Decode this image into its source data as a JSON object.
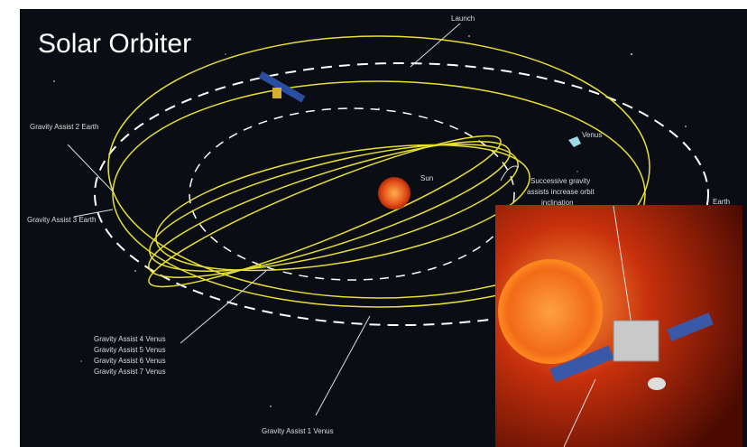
{
  "title": "Solar Orbiter",
  "labels": {
    "launch": "Launch",
    "venus": "Venus",
    "sun": "Sun",
    "earth": "Earth",
    "ga2": "Gravity Assist 2 Earth",
    "ga3": "Gravity Assist 3 Earth",
    "ga1": "Gravity Assist 1 Venus",
    "ga_venus_group": [
      "Gravity Assist 4 Venus",
      "Gravity Assist 5 Venus",
      "Gravity Assist 6 Venus",
      "Gravity Assist 7 Venus"
    ],
    "inclination_note": [
      "Successive gravity",
      "assists increase orbit",
      "inclination"
    ]
  }
}
